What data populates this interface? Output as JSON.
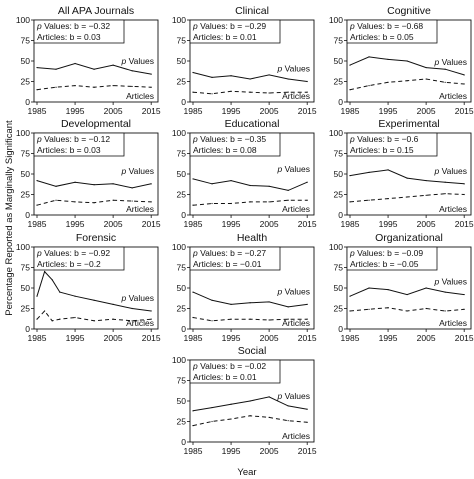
{
  "figure": {
    "ylabel": "Percentage Reported as Marginally Significant",
    "xlabel": "Year"
  },
  "chart_data": [
    {
      "type": "line",
      "title": "All APA Journals",
      "p_legend": "Values: b = −0.32",
      "a_legend": "Articles: b = 0.03",
      "x": [
        1985,
        1990,
        1995,
        2000,
        2005,
        2010,
        2015
      ],
      "xticks": [
        "1985",
        "1995",
        "2005",
        "2015"
      ],
      "yticks": [
        "0",
        "25",
        "50",
        "75",
        "100"
      ],
      "ylim": [
        0,
        100
      ],
      "series": [
        {
          "name": "p Values",
          "values": [
            42,
            40,
            47,
            40,
            45,
            38,
            34
          ]
        },
        {
          "name": "Articles",
          "values": [
            15,
            18,
            20,
            18,
            20,
            19,
            18
          ]
        }
      ]
    },
    {
      "type": "line",
      "title": "Clinical",
      "p_legend": "Values: b = −0.29",
      "a_legend": "Articles: b = 0.01",
      "x": [
        1985,
        1990,
        1995,
        2000,
        2005,
        2010,
        2015
      ],
      "xticks": [
        "1985",
        "1995",
        "2005",
        "2015"
      ],
      "yticks": [
        "0",
        "25",
        "50",
        "75",
        "100"
      ],
      "ylim": [
        0,
        100
      ],
      "series": [
        {
          "name": "p Values",
          "values": [
            36,
            30,
            32,
            28,
            33,
            28,
            25
          ]
        },
        {
          "name": "Articles",
          "values": [
            12,
            10,
            13,
            12,
            11,
            12,
            12
          ]
        }
      ]
    },
    {
      "type": "line",
      "title": "Cognitive",
      "p_legend": "Values: b = −0.68",
      "a_legend": "Articles: b = 0.05",
      "x": [
        1985,
        1990,
        1995,
        2000,
        2005,
        2010,
        2015
      ],
      "xticks": [
        "1985",
        "1995",
        "2005",
        "2015"
      ],
      "yticks": [
        "0",
        "25",
        "50",
        "75",
        "100"
      ],
      "ylim": [
        0,
        100
      ],
      "series": [
        {
          "name": "p Values",
          "values": [
            45,
            55,
            52,
            50,
            42,
            40,
            33
          ]
        },
        {
          "name": "Articles",
          "values": [
            15,
            20,
            24,
            26,
            28,
            24,
            22
          ]
        }
      ]
    },
    {
      "type": "line",
      "title": "Developmental",
      "p_legend": "Values: b = −0.12",
      "a_legend": "Articles: b = 0.03",
      "x": [
        1985,
        1990,
        1995,
        2000,
        2005,
        2010,
        2015
      ],
      "xticks": [
        "1985",
        "1995",
        "2005",
        "2015"
      ],
      "yticks": [
        "0",
        "25",
        "50",
        "75",
        "100"
      ],
      "ylim": [
        0,
        100
      ],
      "series": [
        {
          "name": "p Values",
          "values": [
            42,
            35,
            40,
            37,
            38,
            33,
            38
          ]
        },
        {
          "name": "Articles",
          "values": [
            12,
            18,
            16,
            15,
            18,
            17,
            16
          ]
        }
      ]
    },
    {
      "type": "line",
      "title": "Educational",
      "p_legend": "Values: b = −0.35",
      "a_legend": "Articles: b = 0.08",
      "x": [
        1985,
        1990,
        1995,
        2000,
        2005,
        2010,
        2015
      ],
      "xticks": [
        "1985",
        "1995",
        "2005",
        "2015"
      ],
      "yticks": [
        "0",
        "25",
        "50",
        "75",
        "100"
      ],
      "ylim": [
        0,
        100
      ],
      "series": [
        {
          "name": "p Values",
          "values": [
            44,
            38,
            42,
            36,
            35,
            30,
            40
          ]
        },
        {
          "name": "Articles",
          "values": [
            12,
            14,
            14,
            16,
            16,
            18,
            18
          ]
        }
      ]
    },
    {
      "type": "line",
      "title": "Experimental",
      "p_legend": "Values: b = −0.6",
      "a_legend": "Articles: b = 0.15",
      "x": [
        1985,
        1990,
        1995,
        2000,
        2005,
        2010,
        2015
      ],
      "xticks": [
        "1985",
        "1995",
        "2005",
        "2015"
      ],
      "yticks": [
        "0",
        "25",
        "50",
        "75",
        "100"
      ],
      "ylim": [
        0,
        100
      ],
      "series": [
        {
          "name": "p Values",
          "values": [
            48,
            52,
            55,
            45,
            42,
            40,
            38
          ]
        },
        {
          "name": "Articles",
          "values": [
            16,
            18,
            20,
            22,
            24,
            26,
            25
          ]
        }
      ]
    },
    {
      "type": "line",
      "title": "Forensic",
      "p_legend": "Values: b = −0.92",
      "a_legend": "Articles: b = −0.2",
      "x": [
        1985,
        1987,
        1989,
        1991,
        1995,
        2000,
        2005,
        2010,
        2015
      ],
      "xticks": [
        "1985",
        "1995",
        "2005",
        "2015"
      ],
      "yticks": [
        "0",
        "25",
        "50",
        "75",
        "100"
      ],
      "ylim": [
        0,
        100
      ],
      "series": [
        {
          "name": "p Values",
          "values": [
            40,
            70,
            60,
            45,
            40,
            35,
            30,
            25,
            22
          ]
        },
        {
          "name": "Articles",
          "values": [
            12,
            22,
            10,
            12,
            14,
            10,
            12,
            10,
            12
          ]
        }
      ]
    },
    {
      "type": "line",
      "title": "Health",
      "p_legend": "Values: b = −0.27",
      "a_legend": "Articles: b = −0.01",
      "x": [
        1985,
        1990,
        1995,
        2000,
        2005,
        2010,
        2015
      ],
      "xticks": [
        "1985",
        "1995",
        "2005",
        "2015"
      ],
      "yticks": [
        "0",
        "25",
        "50",
        "75",
        "100"
      ],
      "ylim": [
        0,
        100
      ],
      "series": [
        {
          "name": "p Values",
          "values": [
            45,
            35,
            30,
            32,
            33,
            27,
            30
          ]
        },
        {
          "name": "Articles",
          "values": [
            14,
            10,
            12,
            12,
            11,
            12,
            12
          ]
        }
      ]
    },
    {
      "type": "line",
      "title": "Organizational",
      "p_legend": "Values: b = −0.09",
      "a_legend": "Articles: b = −0.05",
      "x": [
        1985,
        1990,
        1995,
        2000,
        2005,
        2010,
        2015
      ],
      "xticks": [
        "1985",
        "1995",
        "2005",
        "2015"
      ],
      "yticks": [
        "0",
        "25",
        "50",
        "75",
        "100"
      ],
      "ylim": [
        0,
        100
      ],
      "series": [
        {
          "name": "p Values",
          "values": [
            40,
            50,
            48,
            42,
            50,
            45,
            42
          ]
        },
        {
          "name": "Articles",
          "values": [
            22,
            24,
            26,
            22,
            25,
            22,
            24
          ]
        }
      ]
    },
    {
      "type": "line",
      "title": "Social",
      "p_legend": "Values: b = −0.02",
      "a_legend": "Articles: b = 0.01",
      "x": [
        1985,
        1990,
        1995,
        2000,
        2005,
        2010,
        2015
      ],
      "xticks": [
        "1985",
        "1995",
        "2005",
        "2015"
      ],
      "yticks": [
        "0",
        "25",
        "50",
        "75",
        "100"
      ],
      "ylim": [
        0,
        100
      ],
      "series": [
        {
          "name": "p Values",
          "values": [
            38,
            42,
            46,
            50,
            55,
            44,
            40
          ]
        },
        {
          "name": "Articles",
          "values": [
            20,
            25,
            28,
            32,
            30,
            26,
            24
          ]
        }
      ]
    }
  ]
}
